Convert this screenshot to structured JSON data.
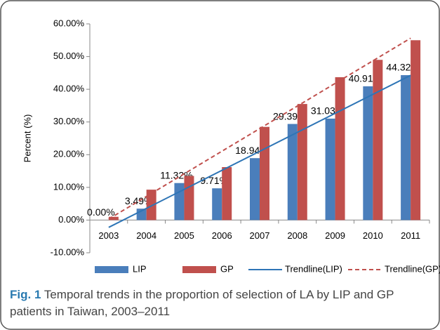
{
  "chart_data": {
    "type": "bar",
    "y_label": "Percent (%)",
    "categories": [
      "2003",
      "2004",
      "2005",
      "2006",
      "2007",
      "2008",
      "2009",
      "2010",
      "2011"
    ],
    "series": [
      {
        "name": "LIP",
        "color": "#4a7ebb",
        "values": [
          0,
          3.49,
          11.32,
          9.71,
          18.94,
          29.39,
          31.03,
          40.91,
          44.32
        ],
        "value_labels": [
          "0.00%",
          "3.49%",
          "11.32%",
          "9.71%",
          "18.94%",
          "29.39%",
          "31.03%",
          "40.91%",
          "44.32%"
        ],
        "trendline": {
          "name": "Trendline(LIP)",
          "dashed": false,
          "color": "#2e75b6"
        }
      },
      {
        "name": "GP",
        "color": "#c0504d",
        "values": [
          1.0,
          9.3,
          13.5,
          16.2,
          28.5,
          35.5,
          43.7,
          49.0,
          55.0
        ],
        "trendline": {
          "name": "Trendline(GP)",
          "dashed": true,
          "color": "#c0504d"
        }
      }
    ],
    "ylim": [
      -10,
      60
    ],
    "yticks": [
      {
        "value": -10,
        "label": "-10.00%"
      },
      {
        "value": 0,
        "label": "0.00%"
      },
      {
        "value": 10,
        "label": "10.00%"
      },
      {
        "value": 20,
        "label": "20.00%"
      },
      {
        "value": 30,
        "label": "30.00%"
      },
      {
        "value": 40,
        "label": "40.00%"
      },
      {
        "value": 50,
        "label": "50.00%"
      },
      {
        "value": 60,
        "label": "60.00%"
      }
    ],
    "grid": false
  },
  "caption": {
    "label": "Fig. 1",
    "text": "Temporal trends in the proportion of selection of LA by LIP and GP patients in Taiwan, 2003–2011"
  }
}
